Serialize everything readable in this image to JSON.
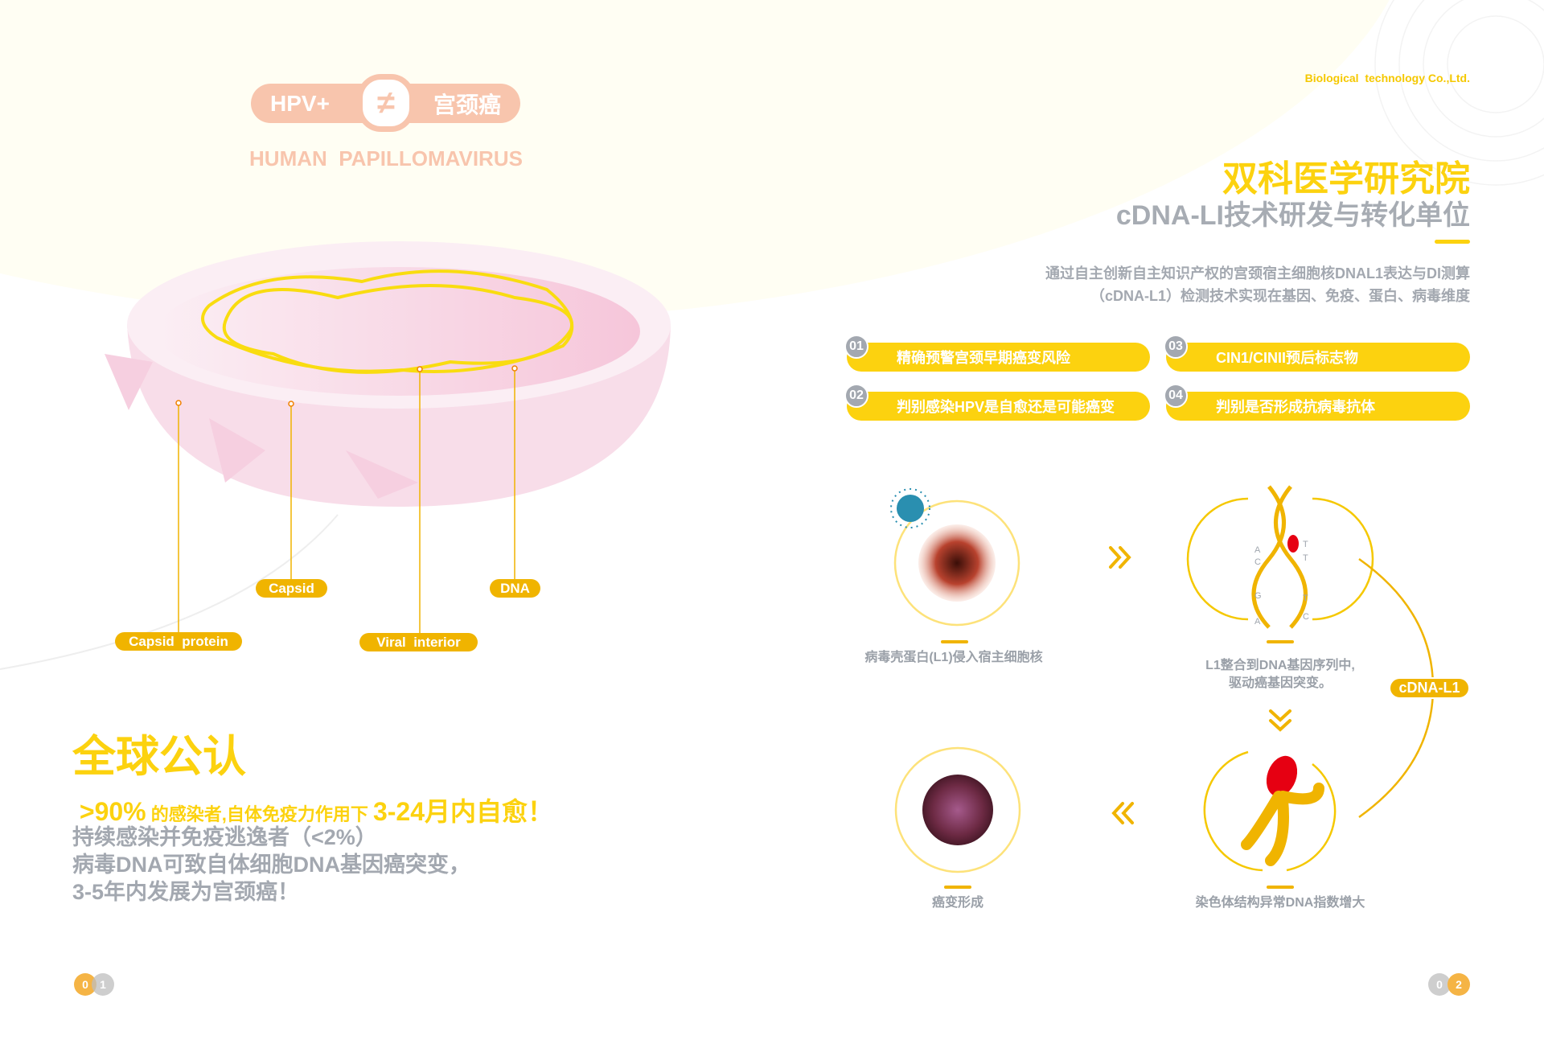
{
  "colors": {
    "accent": "#fcd20f",
    "label": "#f0b400",
    "peach": "#f8c5ad",
    "gray": "#a3a8b0",
    "pink": "#f6cfe0"
  },
  "left": {
    "badge": {
      "left": "HPV+",
      "symbol": "≠",
      "right": "宫颈癌"
    },
    "subtitle": "HUMAN  PAPILLOMAVIRUS",
    "labels": {
      "capsid_protein": "Capsid  protein",
      "capsid": "Capsid",
      "viral_interior": "Viral  interior",
      "dna": "DNA"
    },
    "headline": "全球公认",
    "stat": {
      "pct": ">90%",
      "mid": " 的感染者,自体免疫力作用下 ",
      "range": "3-24月内自愈！"
    },
    "lines": [
      "持续感染并免疫逃逸者（<2%）",
      "病毒DNA可致自体细胞DNA基因癌突变，",
      "3-5年内发展为宫颈癌！"
    ],
    "page": [
      "0",
      "1"
    ]
  },
  "right": {
    "company": "Biological  technology Co.,Ltd.",
    "title": "双科医学研究院",
    "subtitle": "cDNA-LI技术研发与转化单位",
    "desc": [
      "通过自主创新自主知识产权的宫颈宿主细胞核DNAL1表达与DI测算",
      "（cDNA-L1）检测技术实现在基因、免疫、蛋白、病毒维度"
    ],
    "features": [
      {
        "num": "01",
        "text": "精确预警宫颈早期癌变风险"
      },
      {
        "num": "02",
        "text": "判别感染HPV是自愈还是可能癌变"
      },
      {
        "num": "03",
        "text": "CIN1/CINII预后标志物"
      },
      {
        "num": "04",
        "text": "判别是否形成抗病毒抗体"
      }
    ],
    "steps": {
      "s1": "病毒壳蛋白(L1)侵入宿主细胞核",
      "s2": [
        "L1整合到DNA基因序列中,",
        "驱动癌基因突变。"
      ],
      "s3": "染色体结构异常DNA指数增大",
      "s4": "癌变形成"
    },
    "cycle_label": "cDNA-L1",
    "bases": [
      "A",
      "C",
      "G",
      "A",
      "T",
      "T",
      "T",
      "C"
    ],
    "page": [
      "0",
      "2"
    ]
  }
}
